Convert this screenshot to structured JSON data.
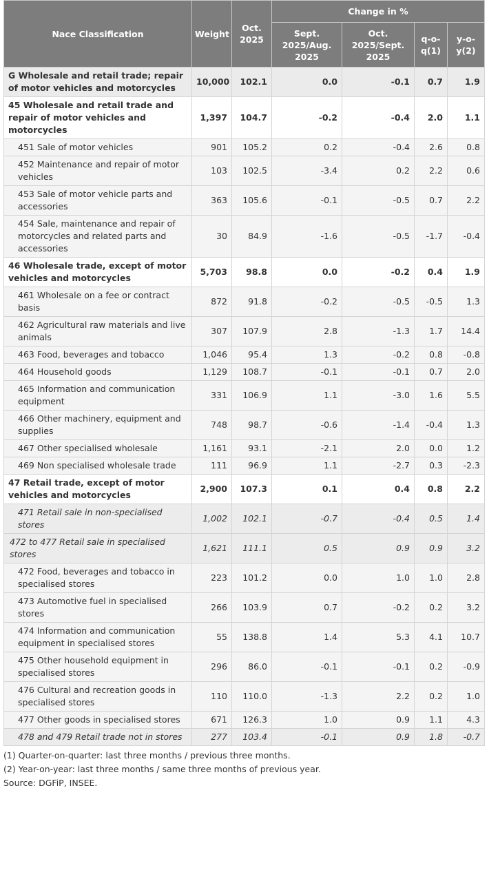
{
  "header": {
    "nace": "Nace Classification",
    "weight": "Weight",
    "oct_line1": "Oct.",
    "oct_line2": "2025",
    "change": "Change in %",
    "sub1_l1": "Sept.",
    "sub1_l2": "2025/Aug.",
    "sub1_l3": "2025",
    "sub2_l1": "Oct.",
    "sub2_l2": "2025/Sept.",
    "sub2_l3": "2025",
    "qoq_l1": "q-o-",
    "qoq_l2": "q(1)",
    "yoy_l1": "y-o-",
    "yoy_l2": "y(2)"
  },
  "rows": [
    {
      "level": "l0",
      "label": "G Wholesale and retail trade; repair of motor vehicles and motorcycles",
      "weight": "10,000",
      "oct": "102.1",
      "sept_aug": "0.0",
      "oct_sept": "-0.1",
      "qoq": "0.7",
      "yoy": "1.9"
    },
    {
      "level": "l1",
      "label": "45 Wholesale and retail trade and repair of motor vehicles and motorcycles",
      "weight": "1,397",
      "oct": "104.7",
      "sept_aug": "-0.2",
      "oct_sept": "-0.4",
      "qoq": "2.0",
      "yoy": "1.1"
    },
    {
      "level": "l2",
      "label": "451 Sale of motor vehicles",
      "weight": "901",
      "oct": "105.2",
      "sept_aug": "0.2",
      "oct_sept": "-0.4",
      "qoq": "2.6",
      "yoy": "0.8"
    },
    {
      "level": "l2",
      "label": "452 Maintenance and repair of motor vehicles",
      "weight": "103",
      "oct": "102.5",
      "sept_aug": "-3.4",
      "oct_sept": "0.2",
      "qoq": "2.2",
      "yoy": "0.6"
    },
    {
      "level": "l2",
      "label": "453 Sale of motor vehicle parts and accessories",
      "weight": "363",
      "oct": "105.6",
      "sept_aug": "-0.1",
      "oct_sept": "-0.5",
      "qoq": "0.7",
      "yoy": "2.2"
    },
    {
      "level": "l2",
      "label": "454 Sale, maintenance and repair of motorcycles and related parts and accessories",
      "weight": "30",
      "oct": "84.9",
      "sept_aug": "-1.6",
      "oct_sept": "-0.5",
      "qoq": "-1.7",
      "yoy": "-0.4"
    },
    {
      "level": "l1",
      "label": "46 Wholesale trade, except of motor vehicles and motorcycles",
      "weight": "5,703",
      "oct": "98.8",
      "sept_aug": "0.0",
      "oct_sept": "-0.2",
      "qoq": "0.4",
      "yoy": "1.9"
    },
    {
      "level": "l2",
      "label": "461 Wholesale on a fee or contract basis",
      "weight": "872",
      "oct": "91.8",
      "sept_aug": "-0.2",
      "oct_sept": "-0.5",
      "qoq": "-0.5",
      "yoy": "1.3"
    },
    {
      "level": "l2",
      "label": "462 Agricultural raw materials and live animals",
      "weight": "307",
      "oct": "107.9",
      "sept_aug": "2.8",
      "oct_sept": "-1.3",
      "qoq": "1.7",
      "yoy": "14.4"
    },
    {
      "level": "l2",
      "label": "463 Food, beverages and tobacco",
      "weight": "1,046",
      "oct": "95.4",
      "sept_aug": "1.3",
      "oct_sept": "-0.2",
      "qoq": "0.8",
      "yoy": "-0.8"
    },
    {
      "level": "l2",
      "label": "464 Household goods",
      "weight": "1,129",
      "oct": "108.7",
      "sept_aug": "-0.1",
      "oct_sept": "-0.1",
      "qoq": "0.7",
      "yoy": "2.0"
    },
    {
      "level": "l2",
      "label": "465 Information and communication equipment",
      "weight": "331",
      "oct": "106.9",
      "sept_aug": "1.1",
      "oct_sept": "-3.0",
      "qoq": "1.6",
      "yoy": "5.5"
    },
    {
      "level": "l2",
      "label": "466 Other machinery, equipment and supplies",
      "weight": "748",
      "oct": "98.7",
      "sept_aug": "-0.6",
      "oct_sept": "-1.4",
      "qoq": "-0.4",
      "yoy": "1.3"
    },
    {
      "level": "l2",
      "label": "467 Other specialised wholesale",
      "weight": "1,161",
      "oct": "93.1",
      "sept_aug": "-2.1",
      "oct_sept": "2.0",
      "qoq": "0.0",
      "yoy": "1.2"
    },
    {
      "level": "l2",
      "label": "469 Non specialised wholesale trade",
      "weight": "111",
      "oct": "96.9",
      "sept_aug": "1.1",
      "oct_sept": "-2.7",
      "qoq": "0.3",
      "yoy": "-2.3"
    },
    {
      "level": "l1",
      "label": "47 Retail trade, except of motor vehicles and motorcycles",
      "weight": "2,900",
      "oct": "107.3",
      "sept_aug": "0.1",
      "oct_sept": "0.4",
      "qoq": "0.8",
      "yoy": "2.2"
    },
    {
      "level": "l2i",
      "label": "471 Retail sale in non-specialised stores",
      "weight": "1,002",
      "oct": "102.1",
      "sept_aug": "-0.7",
      "oct_sept": "-0.4",
      "qoq": "0.5",
      "yoy": "1.4"
    },
    {
      "level": "l2i wide",
      "label": "472 to 477 Retail sale in specialised stores",
      "weight": "1,621",
      "oct": "111.1",
      "sept_aug": "0.5",
      "oct_sept": "0.9",
      "qoq": "0.9",
      "yoy": "3.2"
    },
    {
      "level": "l2",
      "label": "472 Food, beverages and tobacco in specialised stores",
      "weight": "223",
      "oct": "101.2",
      "sept_aug": "0.0",
      "oct_sept": "1.0",
      "qoq": "1.0",
      "yoy": "2.8"
    },
    {
      "level": "l2",
      "label": "473 Automotive fuel in specialised stores",
      "weight": "266",
      "oct": "103.9",
      "sept_aug": "0.7",
      "oct_sept": "-0.2",
      "qoq": "0.2",
      "yoy": "3.2"
    },
    {
      "level": "l2",
      "label": "474 Information and communication equipment in specialised stores",
      "weight": "55",
      "oct": "138.8",
      "sept_aug": "1.4",
      "oct_sept": "5.3",
      "qoq": "4.1",
      "yoy": "10.7"
    },
    {
      "level": "l2",
      "label": "475 Other household equipment in specialised stores",
      "weight": "296",
      "oct": "86.0",
      "sept_aug": "-0.1",
      "oct_sept": "-0.1",
      "qoq": "0.2",
      "yoy": "-0.9"
    },
    {
      "level": "l2",
      "label": "476 Cultural and recreation goods in specialised stores",
      "weight": "110",
      "oct": "110.0",
      "sept_aug": "-1.3",
      "oct_sept": "2.2",
      "qoq": "0.2",
      "yoy": "1.0"
    },
    {
      "level": "l2",
      "label": "477 Other goods in specialised stores",
      "weight": "671",
      "oct": "126.3",
      "sept_aug": "1.0",
      "oct_sept": "0.9",
      "qoq": "1.1",
      "yoy": "4.3"
    },
    {
      "level": "l2i",
      "label": "478 and 479 Retail trade not in stores",
      "weight": "277",
      "oct": "103.4",
      "sept_aug": "-0.1",
      "oct_sept": "0.9",
      "qoq": "1.8",
      "yoy": "-0.7"
    }
  ],
  "notes": {
    "n1": "(1) Quarter-on-quarter: last three months / previous three months.",
    "n2": "(2) Year-on-year: last three months / same three months of previous year.",
    "source": "Source: DGFiP, INSEE."
  }
}
